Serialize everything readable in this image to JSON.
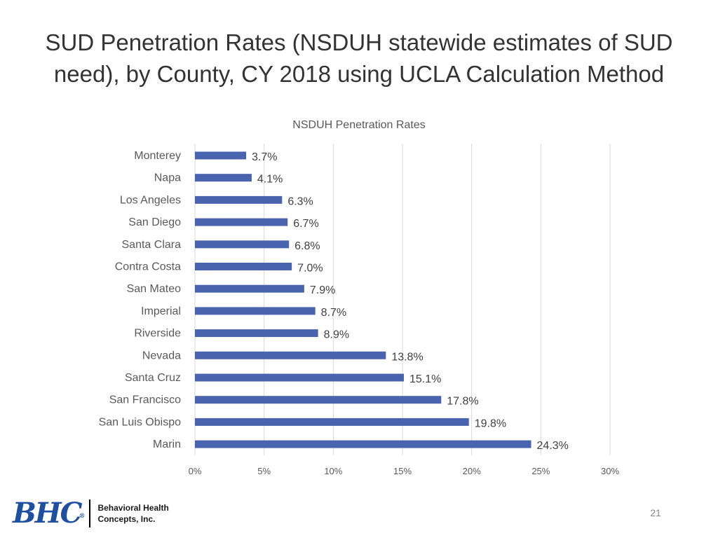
{
  "slide": {
    "title": "SUD Penetration Rates (NSDUH statewide estimates of SUD need), by County, CY 2018 using UCLA Calculation Method",
    "page_number": "21"
  },
  "logo": {
    "mark": "BHC",
    "registered": "®",
    "line1": "Behavioral Health",
    "line2": "Concepts, Inc."
  },
  "colors": {
    "bar": "#4a63ae",
    "grid": "#d9d9d9",
    "brand": "#1f4fa0"
  },
  "chart_data": {
    "type": "bar",
    "orientation": "horizontal",
    "title": "NSDUH Penetration Rates",
    "xlabel": "",
    "ylabel": "",
    "categories": [
      "Monterey",
      "Napa",
      "Los Angeles",
      "San Diego",
      "Santa Clara",
      "Contra Costa",
      "San Mateo",
      "Imperial",
      "Riverside",
      "Nevada",
      "Santa Cruz",
      "San Francisco",
      "San Luis Obispo",
      "Marin"
    ],
    "values": [
      3.7,
      4.1,
      6.3,
      6.7,
      6.8,
      7.0,
      7.9,
      8.7,
      8.9,
      13.8,
      15.1,
      17.8,
      19.8,
      24.3
    ],
    "value_labels": [
      "3.7%",
      "4.1%",
      "6.3%",
      "6.7%",
      "6.8%",
      "7.0%",
      "7.9%",
      "8.7%",
      "8.9%",
      "13.8%",
      "15.1%",
      "17.8%",
      "19.8%",
      "24.3%"
    ],
    "xlim": [
      0,
      30
    ],
    "ticks": [
      0,
      5,
      10,
      15,
      20,
      25,
      30
    ],
    "tick_labels": [
      "0%",
      "5%",
      "10%",
      "15%",
      "20%",
      "25%",
      "30%"
    ],
    "grid": true,
    "legend": "none"
  }
}
